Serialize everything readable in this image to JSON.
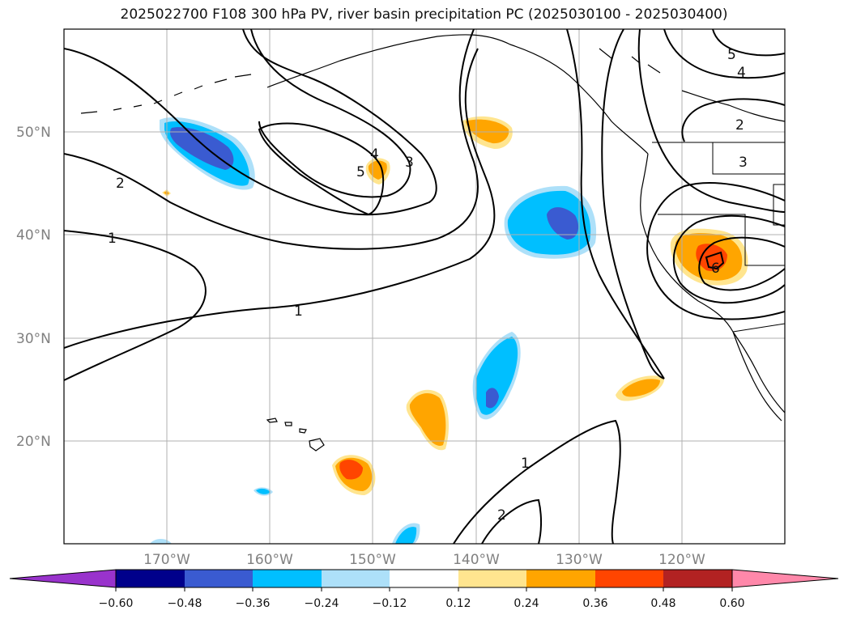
{
  "title": "2025022700 F108 300 hPa PV, river basin precipitation PC (2025030100 - 2025030400)",
  "latitude_labels": [
    "50°N",
    "40°N",
    "30°N",
    "20°N"
  ],
  "longitude_labels": [
    "170°W",
    "160°W",
    "150°W",
    "140°W",
    "130°W",
    "120°W"
  ],
  "contour_labels": [
    "5",
    "4",
    "3",
    "2",
    "1",
    "1",
    "2",
    "3",
    "4",
    "5",
    "6",
    "2",
    "1"
  ],
  "colorbar": {
    "tick_labels": [
      "−0.60",
      "−0.48",
      "−0.36",
      "−0.24",
      "−0.12",
      "0.12",
      "0.24",
      "0.36",
      "0.48",
      "0.60"
    ],
    "colors": [
      "#9933cc",
      "#00008b",
      "#3a5bd1",
      "#00bfff",
      "#ade0f9",
      "#ffffff",
      "#ffe58f",
      "#ffa500",
      "#ff4500",
      "#b22222",
      "#ff88aa"
    ]
  },
  "colors": {
    "negative_strong": "#3a5bd1",
    "negative": "#00bfff",
    "negative_weak": "#ade0f9",
    "positive_weak": "#ffe58f",
    "positive": "#ffa500",
    "positive_strong": "#ff4500",
    "contour": "#000000",
    "grid": "#b0b0b0"
  },
  "map": {
    "projection": "PlateCarree",
    "extent_lon": [
      -180,
      -110
    ],
    "extent_lat": [
      10,
      60
    ],
    "contour_field": "300 hPa PV",
    "shaded_field": "river basin precipitation PC"
  }
}
